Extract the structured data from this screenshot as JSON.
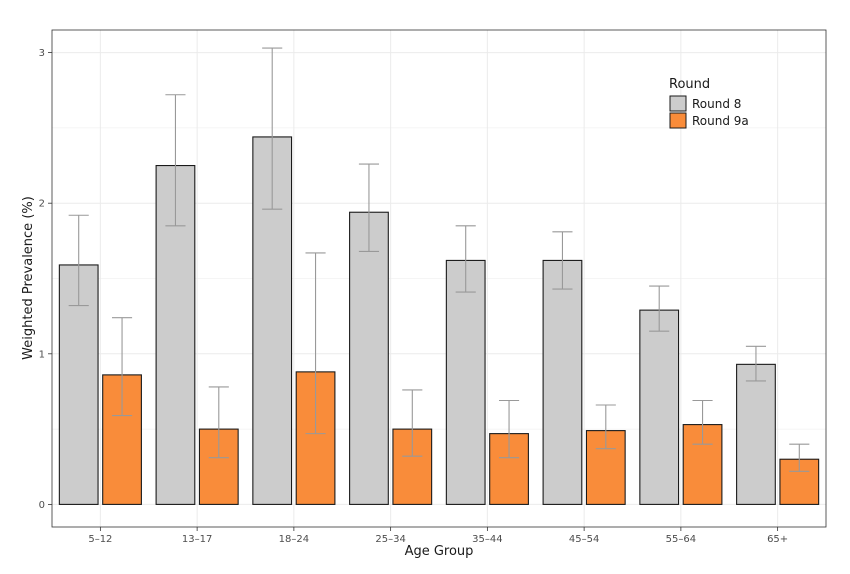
{
  "chart_data": {
    "type": "bar",
    "categories": [
      "5–12",
      "13–17",
      "18–24",
      "25–34",
      "35–44",
      "45–54",
      "55–64",
      "65+"
    ],
    "series": [
      {
        "name": "Round 8",
        "color": "#cccccc",
        "values": [
          1.59,
          2.25,
          2.44,
          1.94,
          1.62,
          1.62,
          1.29,
          0.93
        ],
        "ci_lower": [
          1.32,
          1.85,
          1.96,
          1.68,
          1.41,
          1.43,
          1.15,
          0.82
        ],
        "ci_upper": [
          1.92,
          2.72,
          3.03,
          2.26,
          1.85,
          1.81,
          1.45,
          1.05
        ]
      },
      {
        "name": "Round 9a",
        "color": "#f98c3a",
        "values": [
          0.86,
          0.5,
          0.88,
          0.5,
          0.47,
          0.49,
          0.53,
          0.3
        ],
        "ci_lower": [
          0.59,
          0.31,
          0.47,
          0.32,
          0.31,
          0.37,
          0.4,
          0.22
        ],
        "ci_upper": [
          1.24,
          0.78,
          1.67,
          0.76,
          0.69,
          0.66,
          0.69,
          0.4
        ]
      }
    ],
    "xlabel": "Age Group",
    "ylabel": "Weighted Prevalence (%)",
    "ylim": [
      -0.15,
      3.15
    ],
    "yticks": [
      0,
      1,
      2,
      3
    ],
    "legend_title": "Round",
    "legend_position": "top-right",
    "grid": true,
    "errorbar_color": "#999999",
    "bar_border_color": "#1a1a1a",
    "grid_color": "#ebebeb"
  }
}
